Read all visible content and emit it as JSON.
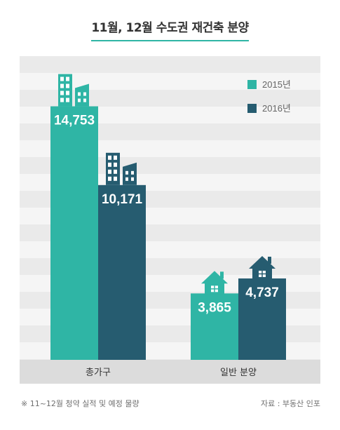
{
  "title": "11월, 12월 수도권 재건축 분양",
  "colors": {
    "s2015": "#2fb5a5",
    "s2016": "#265c70",
    "accent": "#2fb5a5"
  },
  "chart_data": {
    "type": "bar",
    "title": "11월, 12월 수도권 재건축 분양",
    "categories": [
      "총가구",
      "일반 분양"
    ],
    "series": [
      {
        "name": "2015년",
        "values": [
          14753,
          3865
        ],
        "labels": [
          "14,753",
          "3,865"
        ],
        "color": "#2fb5a5"
      },
      {
        "name": "2016년",
        "values": [
          10171,
          4737
        ],
        "labels": [
          "10,171",
          "4,737"
        ],
        "color": "#265c70"
      }
    ],
    "icons": [
      "building-icon",
      "building-icon",
      "house-icon",
      "house-icon"
    ],
    "legend_position": "top-right",
    "grid": true,
    "ylim": [
      0,
      18000
    ]
  },
  "footnote": "※ 11~12월 청약 실적 및 예정 물량",
  "source": "자료 : 부동산 인포"
}
